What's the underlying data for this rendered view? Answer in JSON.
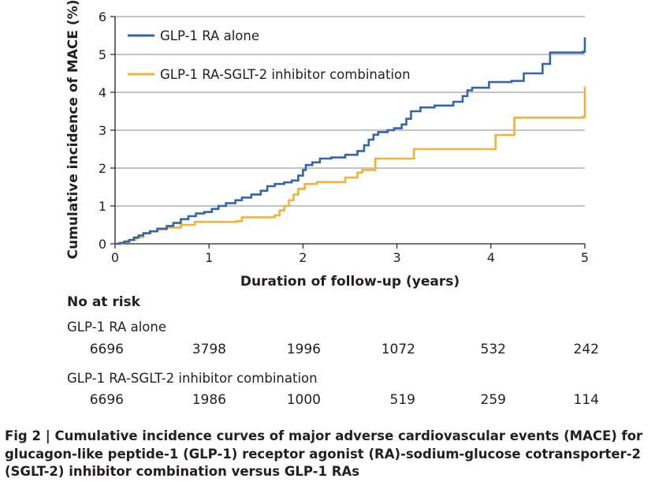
{
  "chart_data": {
    "type": "line",
    "title": "",
    "xlabel": "Duration of follow-up (years)",
    "ylabel": "Cumulative incidence of MACE (%)",
    "xlim": [
      0,
      5
    ],
    "ylim": [
      0,
      6
    ],
    "xticks": [
      "0",
      "1",
      "2",
      "3",
      "4",
      "5"
    ],
    "yticks": [
      "0",
      "1",
      "2",
      "3",
      "4",
      "5",
      "6"
    ],
    "grid": "horizontal",
    "legend_position": "top-left",
    "series": [
      {
        "name": "GLP-1 RA alone",
        "color": "#3465a4",
        "step": true,
        "points": [
          [
            0,
            0
          ],
          [
            0.05,
            0.02
          ],
          [
            0.1,
            0.06
          ],
          [
            0.15,
            0.1
          ],
          [
            0.2,
            0.16
          ],
          [
            0.25,
            0.22
          ],
          [
            0.3,
            0.28
          ],
          [
            0.37,
            0.33
          ],
          [
            0.45,
            0.4
          ],
          [
            0.55,
            0.47
          ],
          [
            0.62,
            0.55
          ],
          [
            0.7,
            0.65
          ],
          [
            0.78,
            0.73
          ],
          [
            0.86,
            0.8
          ],
          [
            0.95,
            0.84
          ],
          [
            1.03,
            0.92
          ],
          [
            1.1,
            1.0
          ],
          [
            1.18,
            1.07
          ],
          [
            1.28,
            1.15
          ],
          [
            1.35,
            1.22
          ],
          [
            1.45,
            1.3
          ],
          [
            1.55,
            1.4
          ],
          [
            1.62,
            1.52
          ],
          [
            1.7,
            1.58
          ],
          [
            1.8,
            1.62
          ],
          [
            1.88,
            1.67
          ],
          [
            1.95,
            1.8
          ],
          [
            2.0,
            1.95
          ],
          [
            2.03,
            2.08
          ],
          [
            2.1,
            2.15
          ],
          [
            2.18,
            2.25
          ],
          [
            2.3,
            2.28
          ],
          [
            2.45,
            2.35
          ],
          [
            2.58,
            2.45
          ],
          [
            2.65,
            2.6
          ],
          [
            2.7,
            2.75
          ],
          [
            2.75,
            2.88
          ],
          [
            2.8,
            2.95
          ],
          [
            2.9,
            3.0
          ],
          [
            2.97,
            3.05
          ],
          [
            3.05,
            3.15
          ],
          [
            3.1,
            3.3
          ],
          [
            3.15,
            3.5
          ],
          [
            3.25,
            3.6
          ],
          [
            3.4,
            3.65
          ],
          [
            3.6,
            3.75
          ],
          [
            3.7,
            3.9
          ],
          [
            3.75,
            4.05
          ],
          [
            3.8,
            4.12
          ],
          [
            3.98,
            4.27
          ],
          [
            4.22,
            4.3
          ],
          [
            4.35,
            4.5
          ],
          [
            4.55,
            4.75
          ],
          [
            4.63,
            5.05
          ],
          [
            4.98,
            5.07
          ],
          [
            5.0,
            5.45
          ]
        ]
      },
      {
        "name": "GLP-1 RA-SGLT-2 inhibitor combination",
        "color": "#f0b33a",
        "step": true,
        "points": [
          [
            0,
            0
          ],
          [
            0.08,
            0.04
          ],
          [
            0.15,
            0.1
          ],
          [
            0.22,
            0.18
          ],
          [
            0.3,
            0.27
          ],
          [
            0.38,
            0.33
          ],
          [
            0.45,
            0.38
          ],
          [
            0.55,
            0.43
          ],
          [
            0.7,
            0.5
          ],
          [
            0.85,
            0.58
          ],
          [
            1.3,
            0.6
          ],
          [
            1.35,
            0.7
          ],
          [
            1.7,
            0.75
          ],
          [
            1.75,
            0.88
          ],
          [
            1.8,
            1.0
          ],
          [
            1.85,
            1.15
          ],
          [
            1.9,
            1.3
          ],
          [
            1.95,
            1.45
          ],
          [
            2.02,
            1.58
          ],
          [
            2.15,
            1.63
          ],
          [
            2.45,
            1.75
          ],
          [
            2.58,
            1.88
          ],
          [
            2.63,
            1.95
          ],
          [
            2.77,
            2.25
          ],
          [
            3.18,
            2.5
          ],
          [
            4.05,
            2.87
          ],
          [
            4.25,
            3.33
          ],
          [
            4.98,
            3.35
          ],
          [
            5.0,
            4.15
          ]
        ]
      }
    ]
  },
  "risk_table": {
    "title": "No at risk",
    "groups": [
      {
        "name": "GLP-1 RA alone",
        "values": [
          "6696",
          "3798",
          "1996",
          "1072",
          "532",
          "242"
        ]
      },
      {
        "name": "GLP-1 RA-SGLT-2 inhibitor combination",
        "values": [
          "6696",
          "1986",
          "1000",
          "519",
          "259",
          "114"
        ]
      }
    ]
  },
  "caption": "Fig 2 | Cumulative incidence curves of major adverse cardiovascular events (MACE) for glucagon-like peptide-1 (GLP-1) receptor agonist (RA)-sodium-glucose cotransporter-2 (SGLT-2) inhibitor combination versus GLP-1 RAs"
}
